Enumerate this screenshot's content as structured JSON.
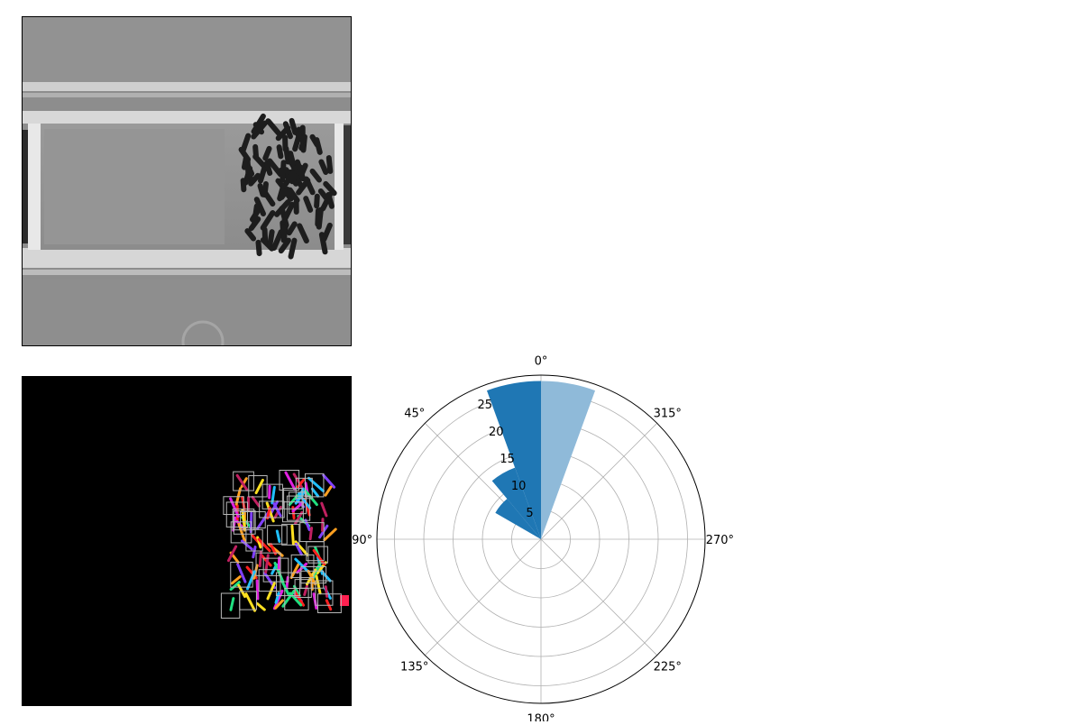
{
  "images": {
    "microscopy": {
      "icon": "phase-contrast-microscopy-image"
    },
    "segmentation": {
      "icon": "cell-segmentation-mask-image"
    }
  },
  "chart_data": {
    "type": "polar-bar",
    "theta_zero": "top",
    "theta_direction": "counterclockwise",
    "theta_ticks": [
      "0°",
      "45°",
      "90°",
      "135°",
      "180°",
      "225°",
      "270°",
      "315°"
    ],
    "theta_tick_values": [
      0,
      45,
      90,
      135,
      180,
      225,
      270,
      315
    ],
    "r_ticks": [
      "5",
      "10",
      "15",
      "20",
      "25"
    ],
    "r_tick_values": [
      5,
      10,
      15,
      20,
      25
    ],
    "rlim": [
      0,
      28
    ],
    "rlabel_angle": 22.5,
    "grid": true,
    "bins": [
      {
        "theta_start": 0,
        "theta_end": 20,
        "value": 27,
        "color": "#1f77b4"
      },
      {
        "theta_start": 20,
        "theta_end": 40,
        "value": 13,
        "color": "#1f77b4"
      },
      {
        "theta_start": 40,
        "theta_end": 60,
        "value": 9,
        "color": "#1f77b4"
      },
      {
        "theta_start": -20,
        "theta_end": 0,
        "value": 27,
        "color": "#8fbad9"
      }
    ]
  }
}
